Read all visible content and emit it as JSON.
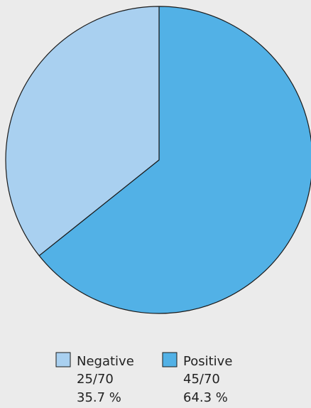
{
  "chart_data": {
    "type": "pie",
    "title": "",
    "slices": [
      {
        "label": "Negative",
        "fraction_text": "25/70",
        "percent_text": "35.7 %",
        "value": 25,
        "color": "#a9d0f0"
      },
      {
        "label": "Positive",
        "fraction_text": "45/70",
        "percent_text": "64.3 %",
        "value": 45,
        "color": "#52b1e6"
      }
    ],
    "total": 70,
    "start_angle": "12 o'clock",
    "direction": "clockwise (Positive first)",
    "legend_position": "bottom-center",
    "stroke_color": "#1a1a1a"
  }
}
